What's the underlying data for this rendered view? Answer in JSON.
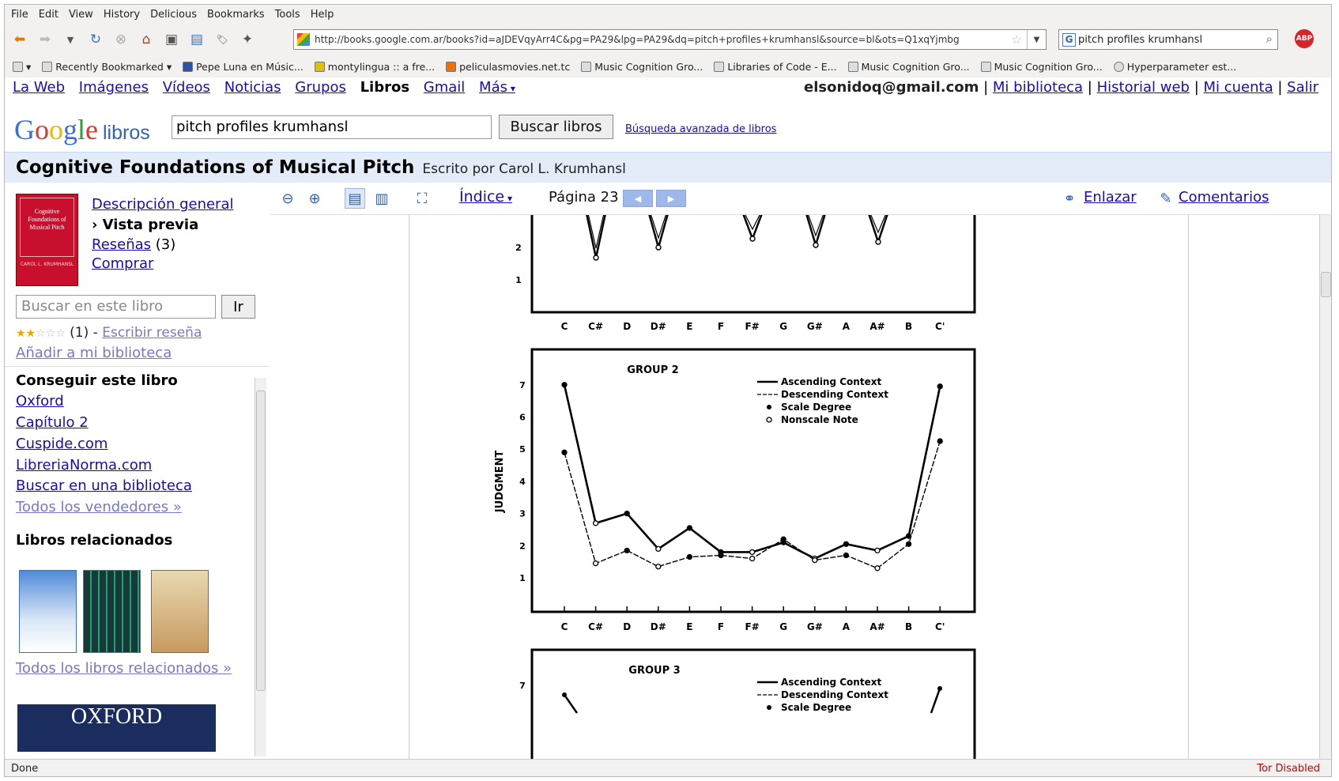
{
  "menu": [
    "File",
    "Edit",
    "View",
    "History",
    "Delicious",
    "Bookmarks",
    "Tools",
    "Help"
  ],
  "url": "http://books.google.com.ar/books?id=aJDEVqyArr4C&pg=PA29&lpg=PA29&dq=pitch+profiles+krumhansl&source=bl&ots=Q1xqYjmbg",
  "browser_search": "pitch profiles krumhansl",
  "bookmarks": [
    "Recently Bookmarked",
    "Pepe Luna en Músic...",
    "montylingua :: a fre...",
    "peliculasmovies.net.tc",
    "Music Cognition Gro...",
    "Libraries of Code - E...",
    "Music Cognition Gro...",
    "Music Cognition Gro...",
    "Hyperparameter est..."
  ],
  "gbar": {
    "items": [
      "La Web",
      "Imágenes",
      "Vídeos",
      "Noticias",
      "Grupos",
      "Libros",
      "Gmail",
      "Más"
    ],
    "selected": "Libros"
  },
  "user": {
    "email": "elsonidoq@gmail.com",
    "links": [
      "Mi biblioteca",
      "Historial web",
      "Mi cuenta",
      "Salir"
    ]
  },
  "logo": {
    "google": "Google",
    "libros": "libros"
  },
  "search": {
    "value": "pitch profiles krumhansl",
    "button": "Buscar libros",
    "advanced": "Búsqueda avanzada de libros"
  },
  "book": {
    "title": "Cognitive Foundations of Musical Pitch",
    "author": "Escrito por Carol L. Krumhansl",
    "cover_title": "Cognitive Foundations of Musical Pitch",
    "cover_author": "CAROL L. KRUMHANSL"
  },
  "side": {
    "overview": "Descripción general",
    "preview": "› Vista previa",
    "reviews": "Reseñas",
    "reviews_count": "(3)",
    "buy": "Comprar",
    "search_placeholder": "Buscar en este libro",
    "go": "Ir",
    "rating_count": "(1)",
    "rating_sep": "-",
    "write_review": "Escribir reseña",
    "add_library": "Añadir a mi biblioteca",
    "get_book": "Conseguir este libro",
    "sellers": [
      "Oxford",
      "Capítulo 2",
      "Cuspide.com",
      "LibreriaNorma.com",
      "Buscar en una biblioteca"
    ],
    "all_sellers": "Todos los vendedores »",
    "related": "Libros relacionados",
    "all_related": "Todos los libros relacionados »",
    "oxford": "OXFORD"
  },
  "viewer": {
    "indice": "Índice",
    "page": "Página 23",
    "link": "Enlazar",
    "comments": "Comentarios"
  },
  "status": {
    "text": "Done",
    "tor": "Tor Disabled"
  },
  "chart_data": [
    {
      "type": "line",
      "title": "GROUP 2",
      "ylabel": "JUDGMENT",
      "categories": [
        "C",
        "C#",
        "D",
        "D#",
        "E",
        "F",
        "F#",
        "G",
        "G#",
        "A",
        "A#",
        "B",
        "C'"
      ],
      "ylim": [
        1,
        7
      ],
      "legend": [
        "Ascending Context",
        "Descending Context",
        "Scale Degree",
        "Nonscale Note"
      ],
      "series": [
        {
          "name": "Ascending Context",
          "values": [
            7.0,
            2.7,
            3.0,
            1.9,
            2.55,
            1.8,
            1.8,
            2.1,
            1.6,
            2.05,
            1.85,
            2.3,
            6.95
          ]
        },
        {
          "name": "Descending Context",
          "values": [
            4.9,
            1.45,
            1.85,
            1.35,
            1.65,
            1.7,
            1.6,
            2.2,
            1.55,
            1.7,
            1.3,
            2.05,
            5.25
          ]
        }
      ]
    },
    {
      "type": "line",
      "title": "GROUP 3",
      "legend": [
        "Ascending Context",
        "Descending Context",
        "Scale Degree"
      ],
      "yticks": [
        "7"
      ]
    }
  ]
}
